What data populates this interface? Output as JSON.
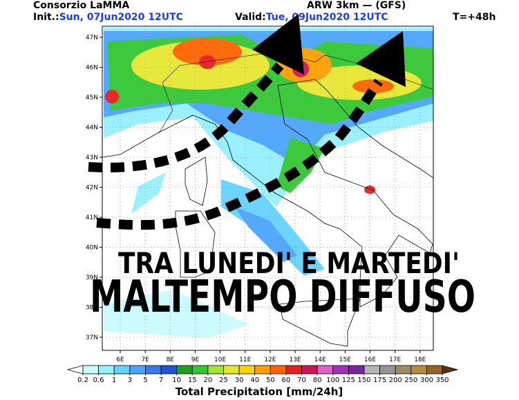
{
  "header": {
    "org": "Consorzio LaMMA",
    "init_label": "Init.:",
    "init_value": "Sun, 07Jun2020 12UTC",
    "model": "ARW 3km — (GFS)",
    "valid_label": "Valid:",
    "valid_value": "Tue, 09Jun2020 12UTC",
    "lead": "T=+48h"
  },
  "map": {
    "grid": true,
    "lat_ticks": [
      {
        "value": 47,
        "label": "47N"
      },
      {
        "value": 46,
        "label": "46N"
      },
      {
        "value": 45,
        "label": "45N"
      },
      {
        "value": 44,
        "label": "44N"
      },
      {
        "value": 43,
        "label": "43N"
      },
      {
        "value": 42,
        "label": "42N"
      },
      {
        "value": 41,
        "label": "41N"
      },
      {
        "value": 40,
        "label": "40N"
      },
      {
        "value": 39,
        "label": "39N"
      },
      {
        "value": 38,
        "label": "38N"
      },
      {
        "value": 37,
        "label": "37N"
      }
    ],
    "lon_ticks": [
      {
        "value": 6,
        "label": "6E"
      },
      {
        "value": 7,
        "label": "7E"
      },
      {
        "value": 8,
        "label": "8E"
      },
      {
        "value": 9,
        "label": "9E"
      },
      {
        "value": 10,
        "label": "10E"
      },
      {
        "value": 11,
        "label": "11E"
      },
      {
        "value": 12,
        "label": "12E"
      },
      {
        "value": 13,
        "label": "13E"
      },
      {
        "value": 14,
        "label": "14E"
      },
      {
        "value": 15,
        "label": "15E"
      },
      {
        "value": 16,
        "label": "16E"
      },
      {
        "value": 17,
        "label": "17E"
      },
      {
        "value": 18,
        "label": "18E"
      }
    ]
  },
  "colorbar": {
    "ticks": [
      0.2,
      0.6,
      1,
      3,
      5,
      7,
      10,
      15,
      20,
      25,
      30,
      40,
      50,
      60,
      70,
      80,
      100,
      125,
      150,
      175,
      200,
      250,
      300,
      350
    ],
    "colors": [
      "#ffffff",
      "#c8fbff",
      "#96f0ff",
      "#64d2ff",
      "#4ba5ff",
      "#3c78f0",
      "#2850d2",
      "#1ea01e",
      "#32c832",
      "#a0e632",
      "#e6e632",
      "#ffd200",
      "#ffa000",
      "#ff6400",
      "#e61e1e",
      "#d21450",
      "#dc64c8",
      "#a032b4",
      "#782896",
      "#b4b4b4",
      "#969696",
      "#a08c64",
      "#b48c3c",
      "#966428",
      "#7a4a1e",
      "#5a3214"
    ],
    "title": "Total Precipitation [mm/24h]"
  },
  "overlay": {
    "line1": "TRA LUNEDI' E MARTEDI'",
    "line2": "MALTEMPO DIFFUSO"
  }
}
